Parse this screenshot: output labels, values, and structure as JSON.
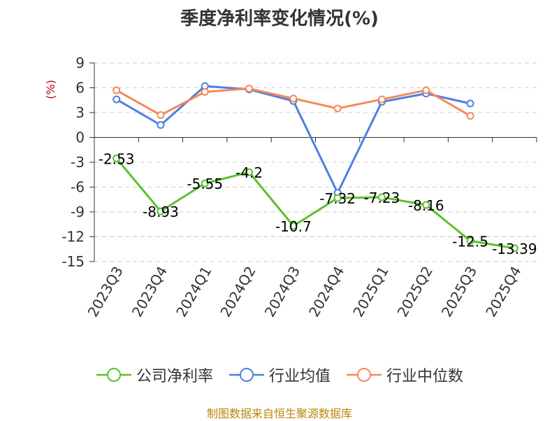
{
  "title": "季度净利率变化情况(%)",
  "source": "制图数据来自恒生聚源数据库",
  "chart_data": {
    "type": "line",
    "title": "季度净利率变化情况(%)",
    "ylabel": "(%)",
    "ylim": [
      -15,
      9
    ],
    "yticks": [
      9,
      6,
      3,
      0,
      -3,
      -6,
      -9,
      -12,
      -15
    ],
    "grid": true,
    "legend_position": "bottom",
    "categories": [
      "2023Q3",
      "2023Q4",
      "2024Q1",
      "2024Q2",
      "2024Q3",
      "2024Q4",
      "2025Q1",
      "2025Q2",
      "2025Q3",
      "2025Q4"
    ],
    "series": [
      {
        "name": "公司净利率",
        "color": "#5ac12d",
        "values": [
          -2.53,
          -8.93,
          -5.55,
          -4.2,
          -10.7,
          -7.32,
          -7.23,
          -8.16,
          -12.5,
          -13.39
        ],
        "labels": [
          "-2.53",
          "-8.93",
          "-5.55",
          "-4.2",
          "-10.7",
          "-7.32",
          "-7.23",
          "-8.16",
          "-12.5",
          "-13.39"
        ]
      },
      {
        "name": "行业均值",
        "color": "#4f7fe0",
        "values": [
          4.6,
          1.5,
          6.2,
          5.8,
          4.4,
          -6.7,
          4.3,
          5.3,
          4.1,
          null
        ]
      },
      {
        "name": "行业中位数",
        "color": "#f5895a",
        "values": [
          5.7,
          2.7,
          5.5,
          5.9,
          4.7,
          3.5,
          4.6,
          5.7,
          2.6,
          null
        ]
      }
    ]
  }
}
